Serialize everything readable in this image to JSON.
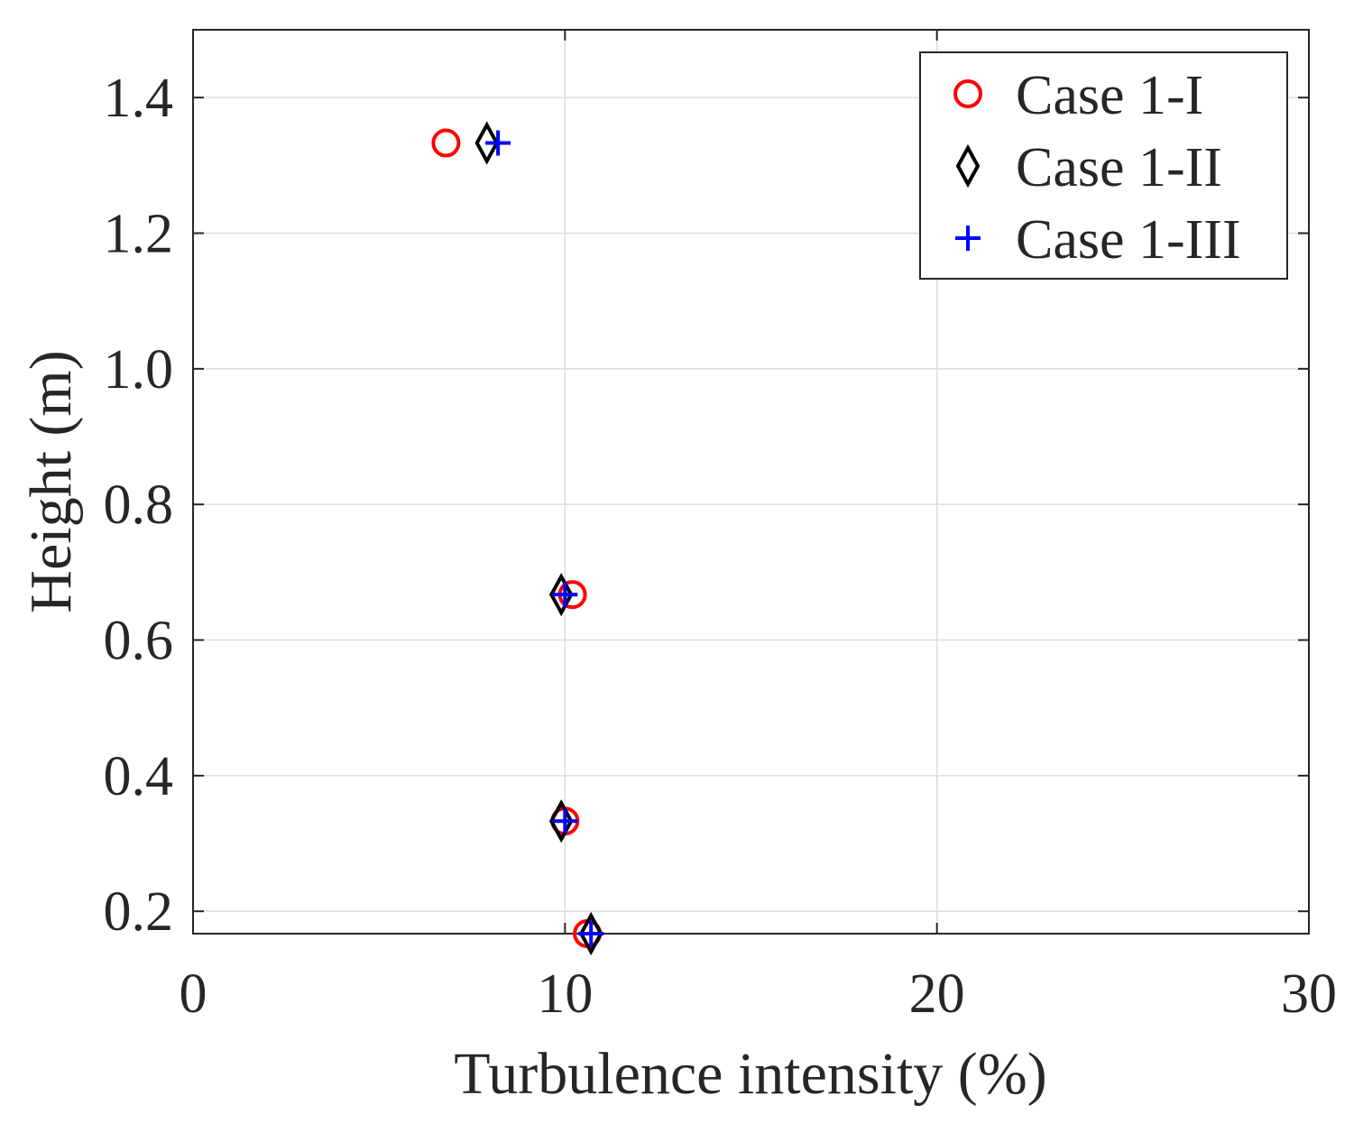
{
  "chart_data": {
    "type": "scatter",
    "title": "",
    "xlabel": "Turbulence intensity (%)",
    "ylabel": "Height (m)",
    "xlim": [
      0,
      30
    ],
    "ylim": [
      0.167,
      1.5
    ],
    "xticks": [
      0,
      10,
      20,
      30
    ],
    "yticks": [
      0.2,
      0.4,
      0.6,
      0.8,
      1.0,
      1.2,
      1.4
    ],
    "xtick_labels": [
      "0",
      "10",
      "20",
      "30"
    ],
    "ytick_labels": [
      "0.2",
      "0.4",
      "0.6",
      "0.8",
      "1.0",
      "1.2",
      "1.4"
    ],
    "grid": true,
    "legend_position": "top-right",
    "series": [
      {
        "name": "Case 1-I",
        "marker": "circle",
        "color": "#ff0000",
        "points": [
          [
            6.8,
            1.333
          ],
          [
            10.2,
            0.667
          ],
          [
            10.0,
            0.333
          ],
          [
            10.6,
            0.167
          ]
        ]
      },
      {
        "name": "Case 1-II",
        "marker": "diamond",
        "color": "#000000",
        "points": [
          [
            7.9,
            1.333
          ],
          [
            9.9,
            0.667
          ],
          [
            9.9,
            0.333
          ],
          [
            10.7,
            0.167
          ]
        ]
      },
      {
        "name": "Case 1-III",
        "marker": "plus",
        "color": "#0000ff",
        "points": [
          [
            8.2,
            1.333
          ],
          [
            10.0,
            0.667
          ],
          [
            10.0,
            0.333
          ],
          [
            10.7,
            0.167
          ]
        ]
      }
    ]
  }
}
